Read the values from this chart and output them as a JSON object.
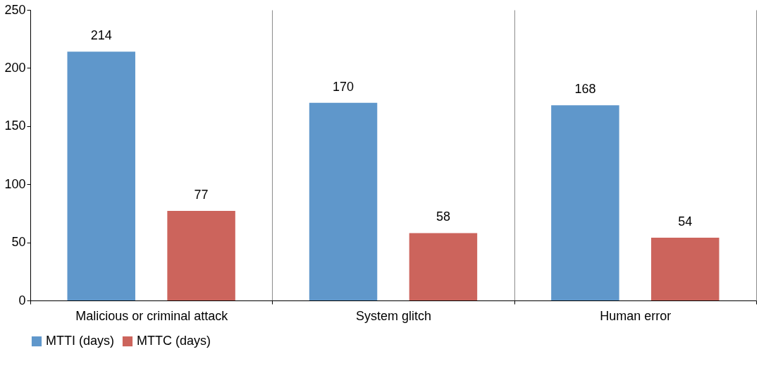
{
  "chart_data": {
    "type": "bar",
    "categories": [
      "Malicious or criminal attack",
      "System glitch",
      "Human error"
    ],
    "series": [
      {
        "name": "MTTI (days)",
        "color": "#5f97cb",
        "values": [
          214,
          170,
          168
        ]
      },
      {
        "name": "MTTC (days)",
        "color": "#cc645c",
        "values": [
          77,
          58,
          54
        ]
      }
    ],
    "ylim": [
      0,
      250
    ],
    "yticks": [
      0,
      50,
      100,
      150,
      200,
      250
    ],
    "grid": "x",
    "legend": "bottom",
    "data_labels": true
  }
}
